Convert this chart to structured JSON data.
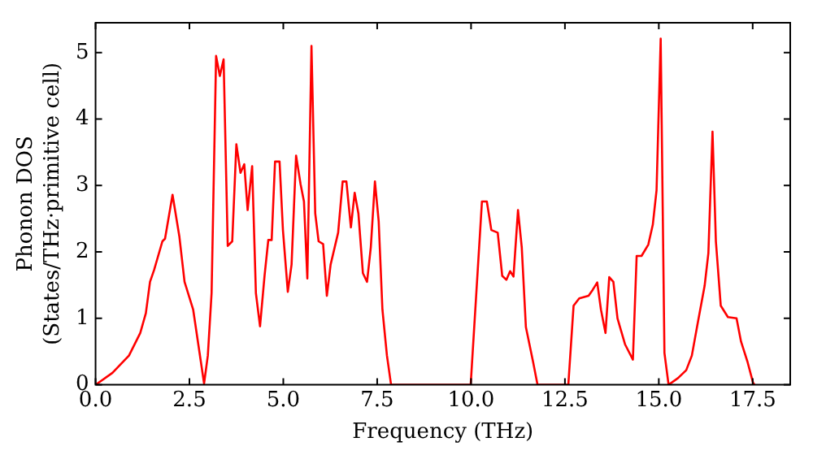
{
  "chart_data": {
    "type": "line",
    "xlabel": "Frequency (THz)",
    "ylabel": "Phonon DOS\n(States/THz·primitive cell)",
    "xlim": [
      0,
      18.5
    ],
    "ylim": [
      0,
      5.45
    ],
    "xticks": [
      {
        "value": 0,
        "label": "0.0"
      },
      {
        "value": 2.5,
        "label": "2.5"
      },
      {
        "value": 5,
        "label": "5.0"
      },
      {
        "value": 7.5,
        "label": "7.5"
      },
      {
        "value": 10,
        "label": "10.0"
      },
      {
        "value": 12.5,
        "label": "12.5"
      },
      {
        "value": 15,
        "label": "15.0"
      },
      {
        "value": 17.5,
        "label": "17.5"
      }
    ],
    "yticks": [
      0,
      1,
      2,
      3,
      4,
      5
    ],
    "grid": false,
    "legend": false,
    "marker": "none",
    "line_style": "solid",
    "series": [
      {
        "color": "#ff0000",
        "x": [
          0,
          0.45,
          0.89,
          1.19,
          1.34,
          1.45,
          1.56,
          1.78,
          1.85,
          2.05,
          2.23,
          2.37,
          2.6,
          2.89,
          2.99,
          3.09,
          3.21,
          3.31,
          3.41,
          3.52,
          3.64,
          3.75,
          3.86,
          3.96,
          4.05,
          4.17,
          4.27,
          4.38,
          4.5,
          4.6,
          4.69,
          4.78,
          4.9,
          4.99,
          5.12,
          5.22,
          5.34,
          5.46,
          5.55,
          5.64,
          5.75,
          5.85,
          5.94,
          6.06,
          6.16,
          6.26,
          6.46,
          6.58,
          6.68,
          6.8,
          6.9,
          7.0,
          7.12,
          7.23,
          7.33,
          7.44,
          7.54,
          7.64,
          7.76,
          7.87,
          9.99,
          10.29,
          10.42,
          10.54,
          10.71,
          10.83,
          10.94,
          11.04,
          11.13,
          11.25,
          11.35,
          11.46,
          11.65,
          11.77,
          12.59,
          12.73,
          12.88,
          13.13,
          13.24,
          13.36,
          13.46,
          13.58,
          13.68,
          13.79,
          13.9,
          14.1,
          14.31,
          14.41,
          14.54,
          14.72,
          14.84,
          14.94,
          15.05,
          15.15,
          15.26,
          15.51,
          15.73,
          15.88,
          16.03,
          16.22,
          16.32,
          16.43,
          16.52,
          16.65,
          16.84,
          17.07,
          17.19,
          17.36,
          17.51,
          17.55
        ],
        "values": [
          0,
          0.18,
          0.44,
          0.78,
          1.08,
          1.55,
          1.73,
          2.16,
          2.2,
          2.86,
          2.24,
          1.55,
          1.13,
          0.02,
          0.44,
          1.38,
          4.95,
          4.65,
          4.9,
          2.09,
          2.16,
          3.62,
          3.19,
          3.32,
          2.63,
          3.29,
          1.38,
          0.88,
          1.64,
          2.18,
          2.18,
          3.36,
          3.36,
          2.33,
          1.4,
          1.81,
          3.45,
          3.02,
          2.76,
          1.6,
          5.1,
          2.58,
          2.16,
          2.12,
          1.34,
          1.81,
          2.29,
          3.06,
          3.06,
          2.37,
          2.89,
          2.58,
          1.68,
          1.55,
          2.07,
          3.06,
          2.46,
          1.13,
          0.44,
          0,
          0,
          2.76,
          2.76,
          2.33,
          2.29,
          1.64,
          1.58,
          1.71,
          1.63,
          2.63,
          2.07,
          0.87,
          0.35,
          0,
          0,
          1.19,
          1.3,
          1.34,
          1.43,
          1.54,
          1.13,
          0.78,
          1.62,
          1.55,
          1.0,
          0.61,
          0.38,
          1.94,
          1.94,
          2.11,
          2.41,
          2.93,
          5.21,
          0.48,
          0,
          0.1,
          0.22,
          0.44,
          0.91,
          1.49,
          1.98,
          3.81,
          2.16,
          1.19,
          1.02,
          1.0,
          0.65,
          0.35,
          0.03,
          0
        ]
      }
    ]
  }
}
